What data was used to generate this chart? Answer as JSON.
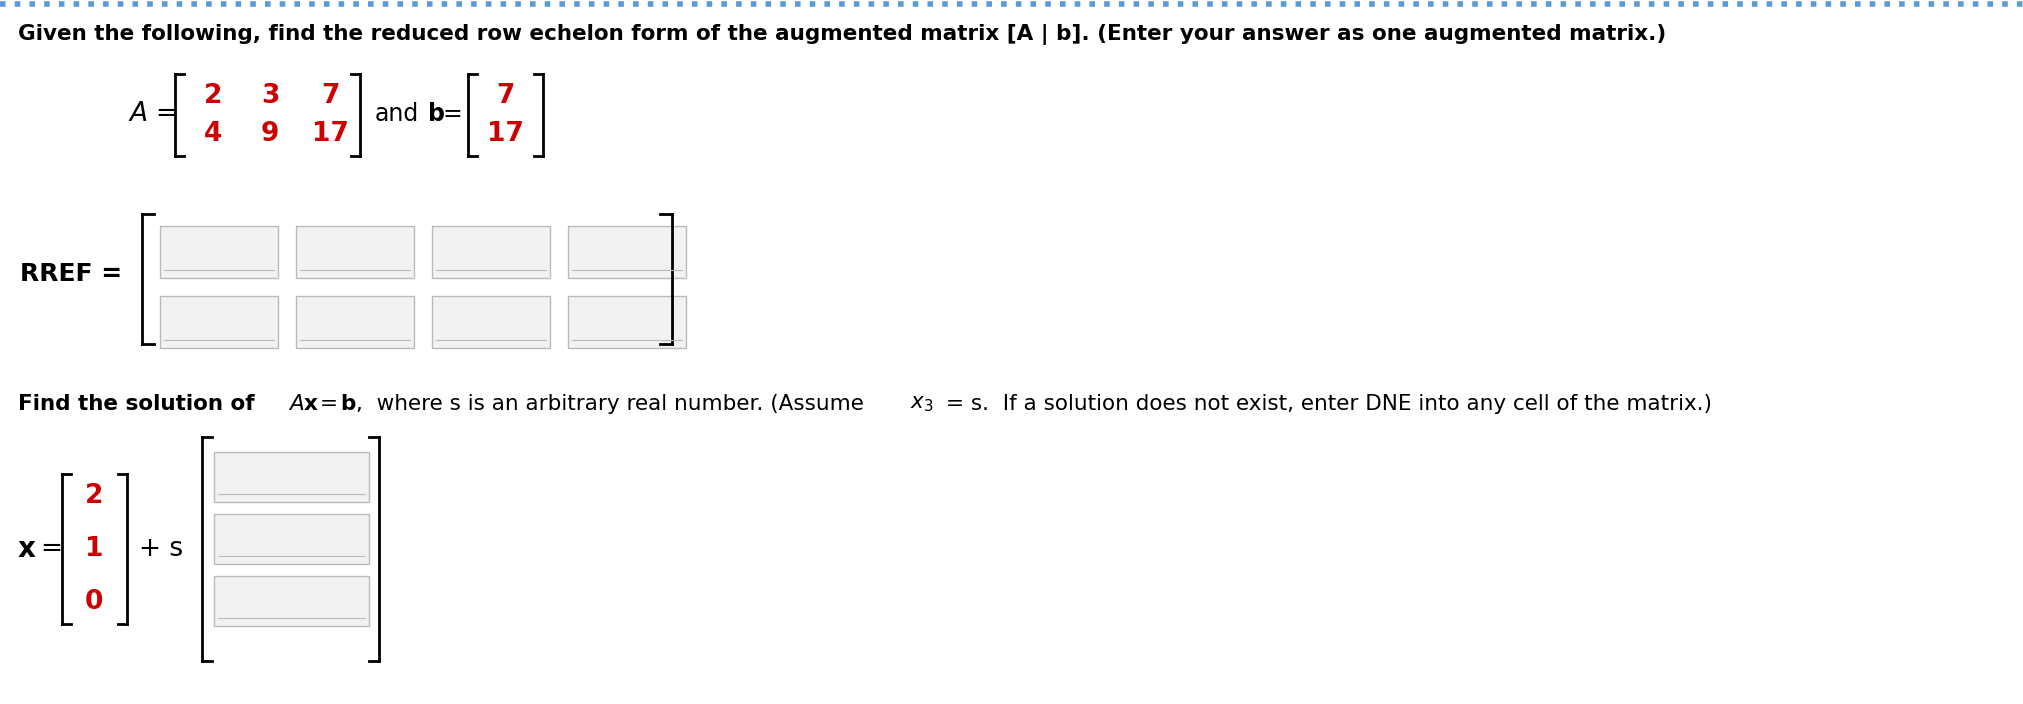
{
  "bg_color": "#ffffff",
  "top_border_color": "#5b9bd5",
  "title_text": "Given the following, find the reduced row echelon form of the augmented matrix [A | b]. (Enter your answer as one augmented matrix.)",
  "title_color": "#000000",
  "title_fontsize": 15.5,
  "matrix_A_color": "#cc0000",
  "matrix_b_color": "#cc0000",
  "matrix_A_values": [
    [
      "2",
      "3",
      "7"
    ],
    [
      "4",
      "9",
      "17"
    ]
  ],
  "matrix_b_values": [
    [
      "7"
    ],
    [
      "17"
    ]
  ],
  "vector_values": [
    "2",
    "1",
    "0"
  ],
  "vector_color": "#cc0000",
  "rref_label": "RREF =",
  "rref_rows": 2,
  "rref_cols": 4,
  "answer_rows": 3,
  "box_fill": "#f2f2f2",
  "box_edge": "#bbbbbb"
}
